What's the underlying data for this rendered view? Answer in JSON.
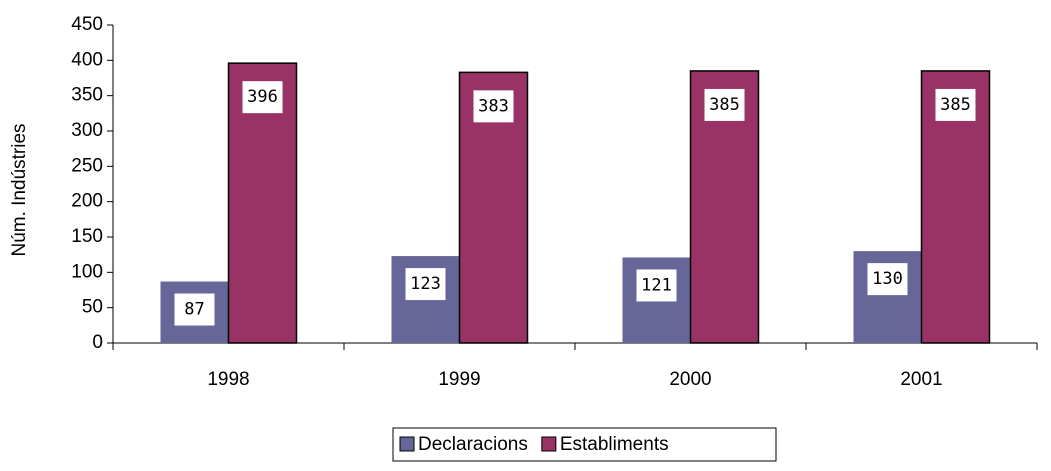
{
  "chart_data": {
    "type": "bar",
    "y_label": "Núm. Indústries",
    "categories": [
      "1998",
      "1999",
      "2000",
      "2001"
    ],
    "series": [
      {
        "name": "Declaracions",
        "color": "#666699",
        "values": [
          87,
          123,
          121,
          130
        ]
      },
      {
        "name": "Establiments",
        "color": "#993366",
        "values": [
          396,
          383,
          385,
          385
        ]
      }
    ],
    "ylim": [
      0,
      450
    ],
    "yticks": [
      0,
      50,
      100,
      150,
      200,
      250,
      300,
      350,
      400,
      450
    ],
    "legend": "bottom"
  }
}
